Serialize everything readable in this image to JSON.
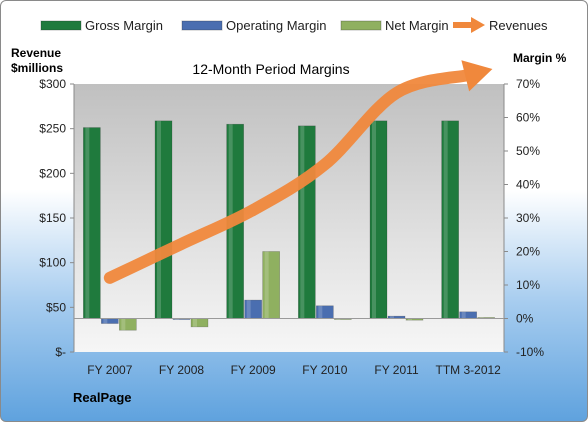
{
  "chart_data": {
    "type": "bar",
    "title": "12-Month Period Margins",
    "left_axis_title": [
      "Revenue",
      "$millions"
    ],
    "right_axis_title": "Margin %",
    "footer_label": "RealPage",
    "categories": [
      "FY 2007",
      "FY 2008",
      "FY 2009",
      "FY 2010",
      "FY 2011",
      "TTM 3-2012"
    ],
    "series": [
      {
        "name": "Gross Margin",
        "type": "bar",
        "axis": "right",
        "color": "#1f7a3d",
        "values": [
          57,
          59,
          58,
          57.5,
          59,
          59
        ]
      },
      {
        "name": "Operating Margin",
        "type": "bar",
        "axis": "right",
        "color": "#4a6eb0",
        "values": [
          -1.5,
          -0.2,
          5.5,
          3.8,
          0.7,
          2
        ]
      },
      {
        "name": "Net Margin",
        "type": "bar",
        "axis": "right",
        "color": "#8fb060",
        "values": [
          -3.5,
          -2.5,
          20,
          -0.2,
          -0.5,
          0.3
        ]
      },
      {
        "name": "Revenues",
        "type": "line",
        "axis": "left",
        "color": "#f0883c",
        "values": [
          83,
          121,
          159,
          210,
          290,
          310
        ]
      }
    ],
    "left_axis": {
      "ylim": [
        0,
        300
      ],
      "ticks": [
        0,
        50,
        100,
        150,
        200,
        250,
        300
      ],
      "tick_labels": [
        "$-",
        "$50",
        "$100",
        "$150",
        "$200",
        "$250",
        "$300"
      ]
    },
    "right_axis": {
      "ylim": [
        -10,
        70
      ],
      "ticks": [
        -10,
        0,
        10,
        20,
        30,
        40,
        50,
        60,
        70
      ],
      "tick_labels": [
        "-10%",
        "0%",
        "10%",
        "20%",
        "30%",
        "40%",
        "50%",
        "60%",
        "70%"
      ]
    },
    "legend_position": "top",
    "grid": false
  }
}
